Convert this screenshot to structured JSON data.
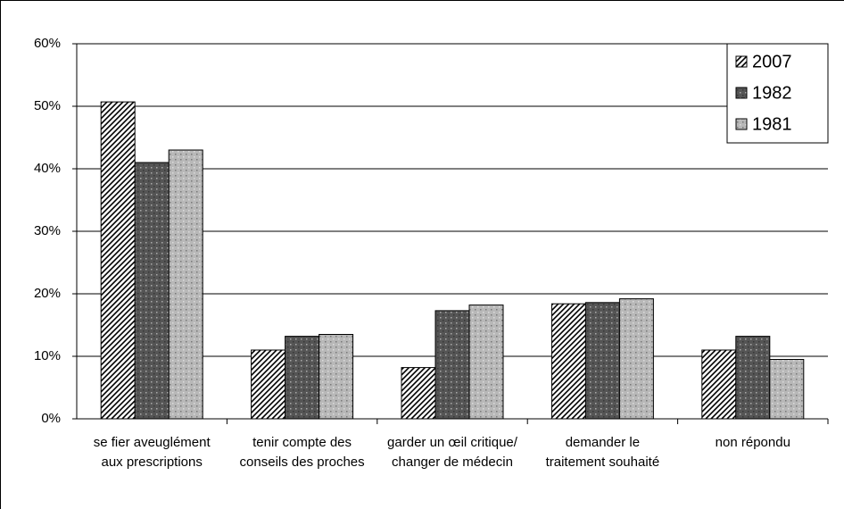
{
  "chart_data": {
    "type": "bar",
    "categories": [
      "se fier aveuglément aux prescriptions",
      "tenir compte des conseils des proches",
      "garder un œil critique/ changer de médecin",
      "demander le traitement souhaité",
      "non répondu"
    ],
    "series": [
      {
        "name": "2007",
        "color": "#000000",
        "values": [
          50.7,
          11,
          8.2,
          18.4,
          11
        ]
      },
      {
        "name": "1982",
        "color": "#555555",
        "values": [
          41,
          13.2,
          17.3,
          18.6,
          13.2
        ]
      },
      {
        "name": "1981",
        "color": "#b8b8b8",
        "values": [
          43,
          13.5,
          18.2,
          19.2,
          9.5
        ]
      }
    ],
    "ylim": [
      0,
      60
    ],
    "yticks": [
      {
        "value": 0,
        "label": "0%"
      },
      {
        "value": 10,
        "label": "10%"
      },
      {
        "value": 20,
        "label": "20%"
      },
      {
        "value": 30,
        "label": "30%"
      },
      {
        "value": 40,
        "label": "40%"
      },
      {
        "value": 50,
        "label": "50%"
      },
      {
        "value": 60,
        "label": "60%"
      }
    ],
    "grid": true,
    "legend": "top-right"
  }
}
